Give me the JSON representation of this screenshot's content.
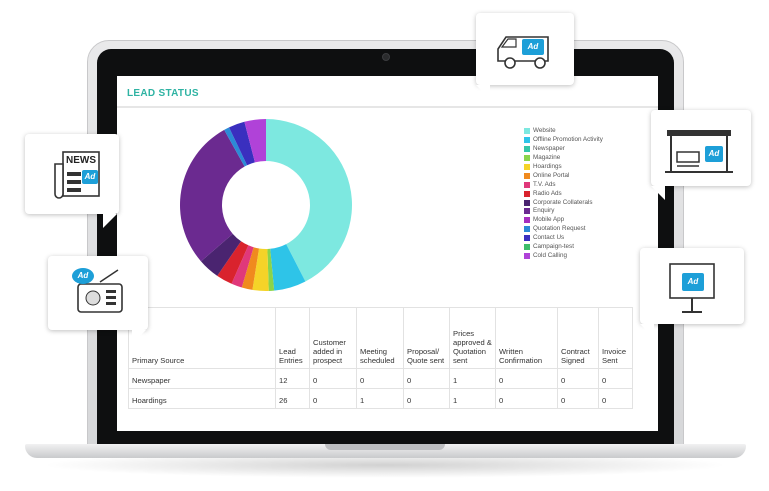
{
  "panel": {
    "title": "LEAD STATUS"
  },
  "legend": [
    {
      "label": "Website",
      "color": "#7de8e0"
    },
    {
      "label": "Offline Promotion Activity",
      "color": "#2ec4e8"
    },
    {
      "label": "Newspaper",
      "color": "#35c6a8"
    },
    {
      "label": "Magazine",
      "color": "#8bd44a"
    },
    {
      "label": "Hoardings",
      "color": "#f5d328"
    },
    {
      "label": "Online Portal",
      "color": "#f08a1e"
    },
    {
      "label": "T.V. Ads",
      "color": "#e0387a"
    },
    {
      "label": "Radio Ads",
      "color": "#d9232d"
    },
    {
      "label": "Corporate Collaterals",
      "color": "#4a2470"
    },
    {
      "label": "Enquiry",
      "color": "#6b2a90"
    },
    {
      "label": "Mobile App",
      "color": "#a62fbf"
    },
    {
      "label": "Quotation Request",
      "color": "#2c8ad6"
    },
    {
      "label": "Contact Us",
      "color": "#3a2fbf"
    },
    {
      "label": "Campaign-test",
      "color": "#3dbd6a"
    },
    {
      "label": "Cold Calling",
      "color": "#b042d8"
    }
  ],
  "chart_data": {
    "type": "pie",
    "categories": [
      "Website",
      "Offline Promotion Activity",
      "Newspaper",
      "Magazine",
      "Hoardings",
      "Online Portal",
      "T.V. Ads",
      "Radio Ads",
      "Corporate Collaterals",
      "Enquiry",
      "Mobile App",
      "Quotation Request",
      "Contact Us",
      "Campaign-test",
      "Cold Calling"
    ],
    "values": [
      42,
      6,
      0,
      1,
      3,
      2,
      2,
      3,
      4,
      28,
      0,
      1,
      3,
      0,
      4
    ],
    "donut": true,
    "colors": [
      "#7de8e0",
      "#2ec4e8",
      "#35c6a8",
      "#8bd44a",
      "#f5d328",
      "#f08a1e",
      "#e0387a",
      "#d9232d",
      "#4a2470",
      "#6b2a90",
      "#a62fbf",
      "#2c8ad6",
      "#3a2fbf",
      "#3dbd6a",
      "#b042d8"
    ]
  },
  "table": {
    "headers": [
      "Primary Source",
      "Lead Entries",
      "Customer added in prospect",
      "Meeting scheduled",
      "Proposal/ Quote sent",
      "Prices approved & Quotation sent",
      "Written Confirmation",
      "Contract Signed",
      "Invoice Sent"
    ],
    "rows": [
      [
        "Newspaper",
        "12",
        "0",
        "0",
        "0",
        "1",
        "0",
        "0",
        "0"
      ],
      [
        "Hoardings",
        "26",
        "0",
        "1",
        "0",
        "1",
        "0",
        "0",
        "0"
      ]
    ]
  },
  "icons": {
    "newspaper": {
      "text": "NEWS",
      "tag": "Ad"
    },
    "radio": {
      "tag": "Ad"
    },
    "van": {
      "tag": "Ad"
    },
    "bus_stop": {
      "tag": "Ad"
    },
    "billboard": {
      "tag": "Ad"
    }
  }
}
